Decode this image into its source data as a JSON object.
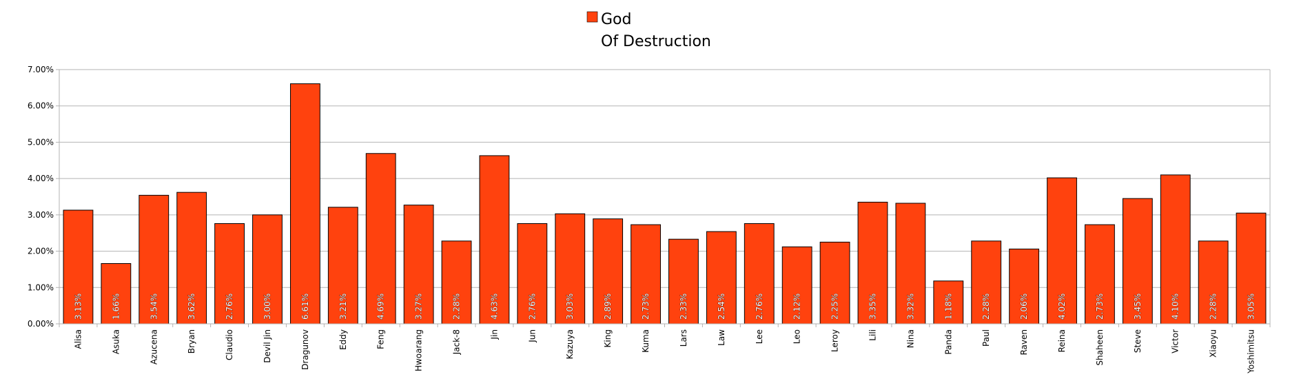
{
  "chart_data": {
    "type": "bar",
    "categories": [
      "Alisa",
      "Asuka",
      "Azucena",
      "Bryan",
      "Claudio",
      "Devil Jin",
      "Dragunov",
      "Eddy",
      "Feng",
      "Hwoarang",
      "Jack-8",
      "Jin",
      "Jun",
      "Kazuya",
      "King",
      "Kuma",
      "Lars",
      "Law",
      "Lee",
      "Leo",
      "Leroy",
      "Lili",
      "Nina",
      "Panda",
      "Paul",
      "Raven",
      "Reina",
      "Shaheen",
      "Steve",
      "Victor",
      "Xiaoyu",
      "Yoshimitsu"
    ],
    "series": [
      {
        "name": "God Of Destruction",
        "values": [
          3.13,
          1.66,
          3.54,
          3.62,
          2.76,
          3.0,
          6.61,
          3.21,
          4.69,
          3.27,
          2.28,
          4.63,
          2.76,
          3.03,
          2.89,
          2.73,
          2.33,
          2.54,
          2.76,
          2.12,
          2.25,
          3.35,
          3.32,
          1.18,
          2.28,
          2.06,
          4.02,
          2.73,
          3.45,
          4.1,
          2.28,
          3.05
        ],
        "color": "#ff420e"
      }
    ],
    "data_labels": [
      "3.13%",
      "1.66%",
      "3.54%",
      "3.62%",
      "2.76%",
      "3.00%",
      "6.61%",
      "3.21%",
      "4.69%",
      "3.27%",
      "2.28%",
      "4.63%",
      "2.76%",
      "3.03%",
      "2.89%",
      "2.73%",
      "2.33%",
      "2.54%",
      "2.76%",
      "2.12%",
      "2.25%",
      "3.35%",
      "3.32%",
      "1.18%",
      "2.28%",
      "2.06%",
      "4.02%",
      "2.73%",
      "3.45%",
      "4.10%",
      "2.28%",
      "3.05%"
    ],
    "legend": {
      "line1": "God",
      "line2": "Of Destruction",
      "placement": "top-center"
    },
    "yticks": [
      "0.00%",
      "1.00%",
      "2.00%",
      "3.00%",
      "4.00%",
      "5.00%",
      "6.00%",
      "7.00%"
    ],
    "ylim": [
      0,
      7
    ],
    "grid": true,
    "title": "",
    "xlabel": "",
    "ylabel": ""
  }
}
